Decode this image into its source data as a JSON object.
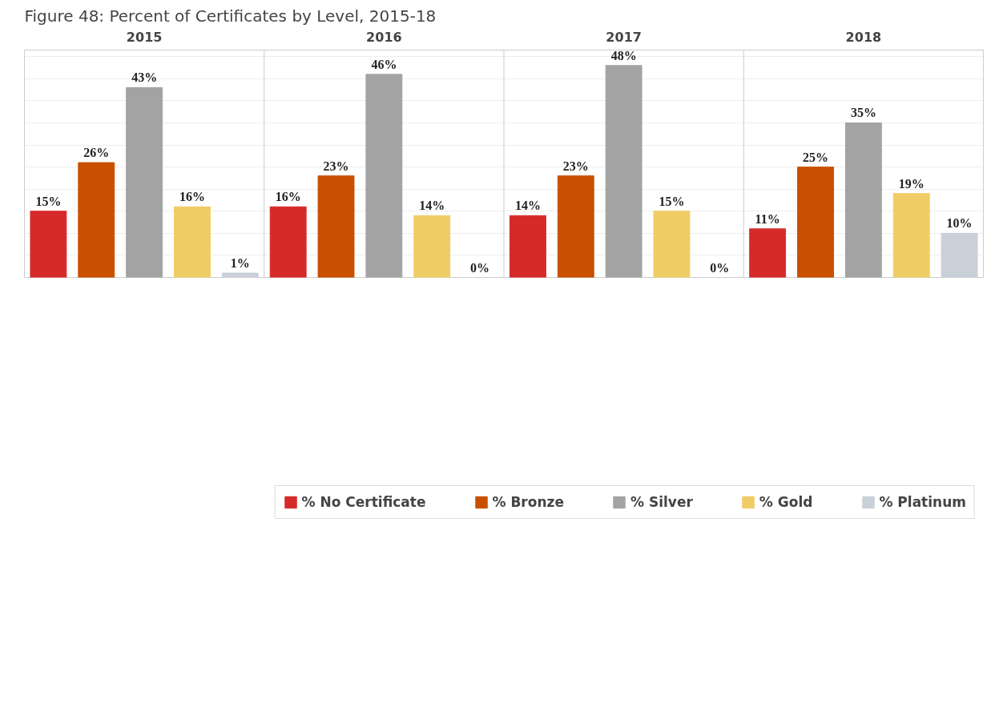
{
  "chart_data": {
    "type": "bar",
    "title": "Figure 48: Percent of Certificates by Level, 2015-18",
    "categories": [
      "2015",
      "2016",
      "2017",
      "2018"
    ],
    "series": [
      {
        "name": "% No Certificate",
        "color": "#d62a2a",
        "values": [
          15,
          16,
          14,
          11
        ],
        "value_labels": [
          "15%",
          "16%",
          "14%",
          "11%"
        ]
      },
      {
        "name": "% Bronze",
        "color": "#c85000",
        "values": [
          26,
          23,
          23,
          25
        ],
        "value_labels": [
          "26%",
          "23%",
          "23%",
          "25%"
        ]
      },
      {
        "name": "% Silver",
        "color": "#a3a3a3",
        "values": [
          43,
          46,
          48,
          35
        ],
        "value_labels": [
          "43%",
          "46%",
          "48%",
          "35%"
        ]
      },
      {
        "name": "% Gold",
        "color": "#f0cc66",
        "values": [
          16,
          14,
          15,
          19
        ],
        "value_labels": [
          "16%",
          "14%",
          "15%",
          "19%"
        ]
      },
      {
        "name": "% Platinum",
        "color": "#c9d0da",
        "values": [
          1,
          0,
          0,
          10
        ],
        "value_labels": [
          "1%",
          "0%",
          "0%",
          "10%"
        ]
      }
    ],
    "ylim": [
      0,
      51.5
    ],
    "yticks": [
      {
        "value": 0,
        "label": null
      },
      {
        "value": 5,
        "label": null
      },
      {
        "value": 10,
        "label": null
      },
      {
        "value": 15,
        "label": null
      },
      {
        "value": 20,
        "label": null
      },
      {
        "value": 25,
        "label": null
      },
      {
        "value": 30,
        "label": null
      },
      {
        "value": 35,
        "label": null
      },
      {
        "value": 40,
        "label": null
      },
      {
        "value": 45,
        "label": null
      },
      {
        "value": 50,
        "label": null
      }
    ],
    "grid": "y",
    "legend": "bottom",
    "tick_labels": "x"
  }
}
